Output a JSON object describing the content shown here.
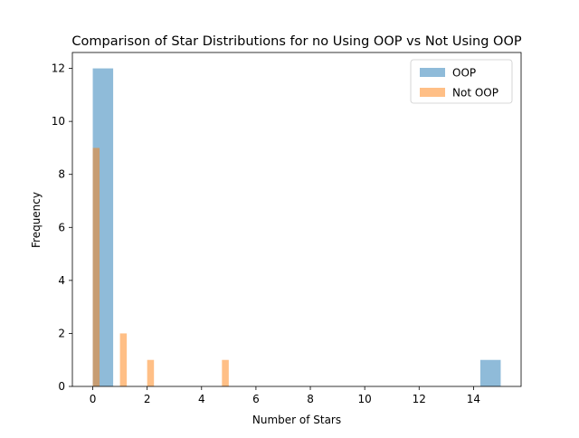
{
  "chart_data": {
    "type": "bar",
    "title": "Comparison of Star Distributions for no Using OOP vs Not Using OOP",
    "xlabel": "Number of Stars",
    "ylabel": "Frequency",
    "xlim": [
      -0.75,
      15.75
    ],
    "ylim": [
      0,
      12.6
    ],
    "xticks": [
      0,
      2,
      4,
      6,
      8,
      10,
      12,
      14
    ],
    "yticks": [
      0,
      2,
      4,
      6,
      8,
      10,
      12
    ],
    "grid": false,
    "legend_position": "top-right",
    "series": [
      {
        "name": "OOP",
        "color": "#1f77b4",
        "opacity": 0.5,
        "bins": [
          {
            "x0": 0.0,
            "x1": 0.75,
            "value": 12
          },
          {
            "x0": 14.25,
            "x1": 15.0,
            "value": 1
          }
        ]
      },
      {
        "name": "Not OOP",
        "color": "#ff7f0e",
        "opacity": 0.5,
        "bins": [
          {
            "x0": 0.0,
            "x1": 0.25,
            "value": 9
          },
          {
            "x0": 1.0,
            "x1": 1.25,
            "value": 2
          },
          {
            "x0": 2.0,
            "x1": 2.25,
            "value": 1
          },
          {
            "x0": 4.75,
            "x1": 5.0,
            "value": 1
          }
        ]
      }
    ]
  }
}
